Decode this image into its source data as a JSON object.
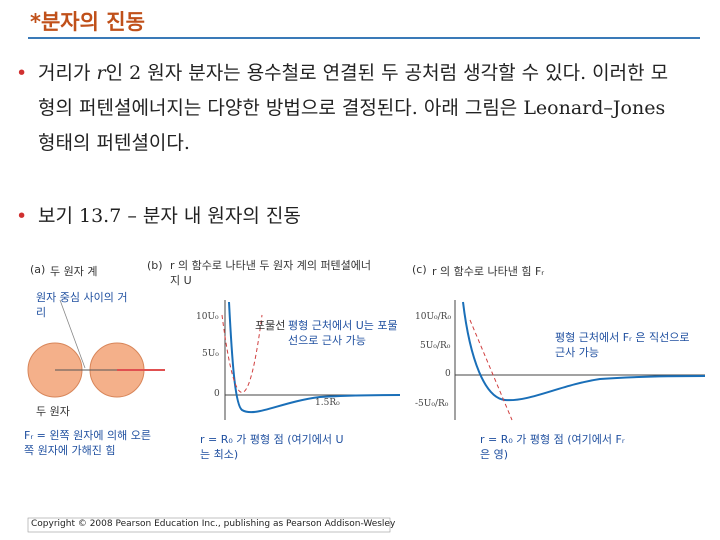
{
  "header": {
    "title": "*분자의 진동"
  },
  "bullets": [
    {
      "parts": [
        "거리가 ",
        "r",
        "인 2 원자 분자는 용수철로 연결된 두 공처럼 생각할 수 있다. 이러한 모형의 퍼텐셜에너지는 다양한 방법으로 결정된다. 아래 그림은 Leonard–Jones 형태의 퍼텐셜이다."
      ]
    },
    {
      "parts": [
        "보기 13.7 – 분자 내 원자의 진동"
      ]
    }
  ],
  "figure": {
    "a": {
      "tag": "(a)",
      "title": "두 원자 계",
      "distance": "원자 중심 사이의 거리",
      "atoms": "두 원자",
      "force": "Fᵣ = 왼쪽 원자에 의해 오른쪽 원자에 가해진 힘"
    },
    "b": {
      "tag": "(b)",
      "title": "r 의 함수로 나타낸 두 원자 계의 퍼텐셜에너지 U",
      "parabola": "포물선",
      "approx": "평형 근처에서 U는 포물선으로 근사 가능",
      "equilibrium": "r = R₀ 가 평형 점 (여기에서 U는 최소)",
      "ticks": [
        "10U₀",
        "5U₀",
        "0",
        "1.5R₀"
      ]
    },
    "c": {
      "tag": "(c)",
      "title": "r 의 함수로 나타낸 힘 Fᵣ",
      "approx": "평형 근처에서 Fᵣ 은 직선으로 근사 가능",
      "equilibrium": "r = R₀ 가 평형 점 (여기에서 Fᵣ 은 영)",
      "ticks": [
        "10U₀/R₀",
        "5U₀/R₀",
        "0",
        "-5U₀/R₀"
      ]
    }
  },
  "footer": {
    "copyright": "Copyright © 2008 Pearson Education Inc., publishing as Pearson Addison-Wesley"
  }
}
